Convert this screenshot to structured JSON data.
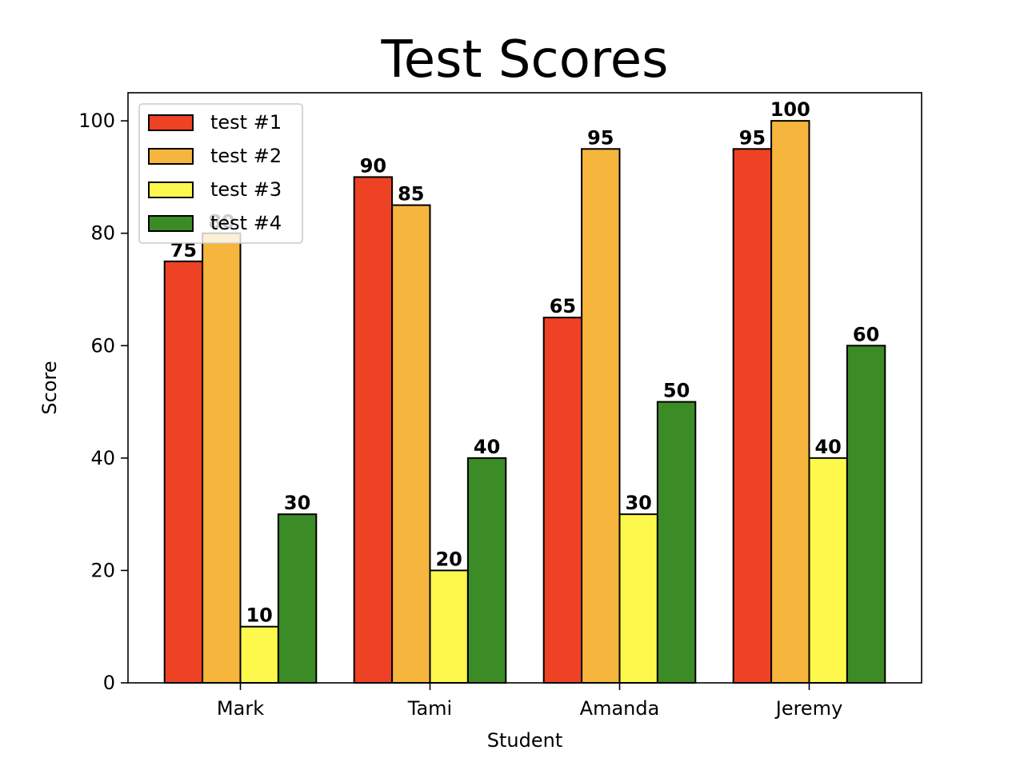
{
  "chart_data": {
    "type": "bar",
    "title": "Test Scores",
    "xlabel": "Student",
    "ylabel": "Score",
    "categories": [
      "Mark",
      "Tami",
      "Amanda",
      "Jeremy"
    ],
    "series": [
      {
        "name": "test #1",
        "color": "#ee4224",
        "values": [
          75,
          90,
          65,
          95
        ]
      },
      {
        "name": "test #2",
        "color": "#f6b53c",
        "values": [
          80,
          85,
          95,
          100
        ]
      },
      {
        "name": "test #3",
        "color": "#fdf84c",
        "values": [
          10,
          20,
          30,
          40
        ]
      },
      {
        "name": "test #4",
        "color": "#3b8b26",
        "values": [
          30,
          40,
          50,
          60
        ]
      }
    ],
    "ylim": [
      0,
      105
    ],
    "yticks": [
      0,
      20,
      40,
      60,
      80,
      100
    ],
    "grid": false,
    "legend_position": "top-left"
  }
}
